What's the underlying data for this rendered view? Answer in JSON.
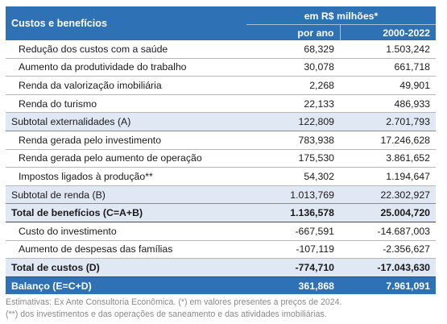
{
  "header": {
    "title": "Custos e benefícios",
    "unit": "em R$ milhões*",
    "col1": "por ano",
    "col2": "2000-2022"
  },
  "rows": [
    {
      "label": "Redução dos custos com a saúde",
      "v1": "68,329",
      "v2": "1.503,242"
    },
    {
      "label": "Aumento da produtividade do trabalho",
      "v1": "30,078",
      "v2": "661,718"
    },
    {
      "label": "Renda da valorização imobiliária",
      "v1": "2,268",
      "v2": "49,901"
    },
    {
      "label": "Renda do turismo",
      "v1": "22,133",
      "v2": "486,933"
    },
    {
      "label": "Subtotal externalidades (A)",
      "v1": "122,809",
      "v2": "2.701,793"
    },
    {
      "label": "Renda gerada pelo investimento",
      "v1": "783,938",
      "v2": "17.246,628"
    },
    {
      "label": "Renda gerada pelo aumento de operação",
      "v1": "175,530",
      "v2": "3.861,652"
    },
    {
      "label": "Impostos ligados à produção**",
      "v1": "54,302",
      "v2": "1.194,647"
    },
    {
      "label": "Subtotal de renda (B)",
      "v1": "1.013,769",
      "v2": "22.302,927"
    },
    {
      "label": "Total de benefícios (C=A+B)",
      "v1": "1.136,578",
      "v2": "25.004,720"
    },
    {
      "label": "Custo do investimento",
      "v1": "-667,591",
      "v2": "-14.687,003"
    },
    {
      "label": "Aumento de despesas das famílias",
      "v1": "-107,119",
      "v2": "-2.356,627"
    },
    {
      "label": "Total de custos (D)",
      "v1": "-774,710",
      "v2": "-17.043,630"
    },
    {
      "label": "Balanço (E=C+D)",
      "v1": "361,868",
      "v2": "7.961,091"
    }
  ],
  "footnote": {
    "line1": "Estimativas: Ex Ante Consultoria Econômica. (*) em valores presentes a preços de 2024.",
    "line2": "(**) dos investimentos e das operações de saneamento e das atividades imobiliárias."
  }
}
